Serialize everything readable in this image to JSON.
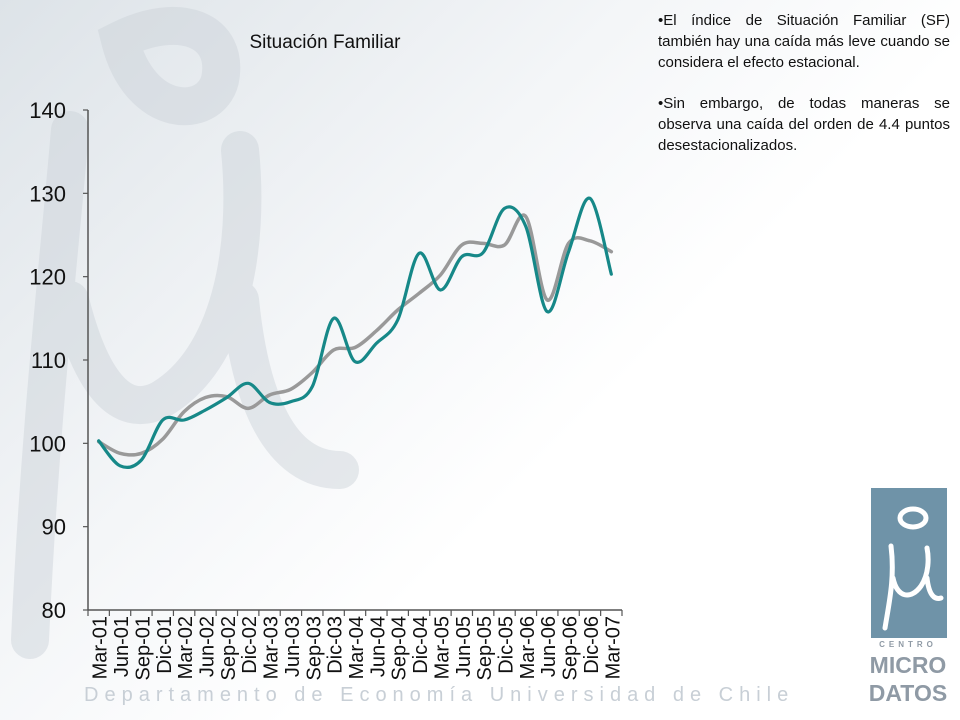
{
  "footer": "Departamento de Economía   Universidad de Chile",
  "notes": [
    "•El índice de Situación Familiar (SF) también hay una caída más leve cuando se considera el efecto estacional.",
    "•Sin embargo, de todas maneras se observa una caída del orden de 4.4 puntos desestacionalizados."
  ],
  "logo": {
    "centro": "CENTRO",
    "micro": "MICRO",
    "datos": "DATOS",
    "color": "#6f93a8"
  },
  "chart_data": {
    "type": "line",
    "title": "Situación Familiar",
    "xlabel": "",
    "ylabel": "",
    "ylim": [
      80,
      140
    ],
    "yticks": [
      80,
      90,
      100,
      110,
      120,
      130,
      140
    ],
    "grid": false,
    "legend": "none",
    "x": [
      "Mar-01",
      "Jun-01",
      "Sep-01",
      "Dic-01",
      "Mar-02",
      "Jun-02",
      "Sep-02",
      "Dic-02",
      "Mar-03",
      "Jun-03",
      "Sep-03",
      "Dic-03",
      "Mar-04",
      "Jun-04",
      "Sep-04",
      "Dic-04",
      "Mar-05",
      "Jun-05",
      "Sep-05",
      "Dic-05",
      "Mar-06",
      "Jun-06",
      "Sep-06",
      "Dic-06",
      "Mar-07"
    ],
    "series": [
      {
        "color": "#999999",
        "values": [
          100.2,
          98.8,
          98.8,
          100.5,
          103.8,
          105.5,
          105.6,
          104.2,
          105.8,
          106.5,
          108.5,
          111.2,
          111.5,
          113.5,
          116.0,
          118.0,
          120.2,
          123.8,
          124.0,
          123.8,
          127.2,
          117.2,
          124.0,
          124.3,
          123.0
        ]
      },
      {
        "color": "#168888",
        "values": [
          100.3,
          97.3,
          98.0,
          102.8,
          102.8,
          104.0,
          105.5,
          107.2,
          104.9,
          105.0,
          106.8,
          115.0,
          109.8,
          112.0,
          114.8,
          122.8,
          118.4,
          122.4,
          122.9,
          128.2,
          126.0,
          115.8,
          123.0,
          129.4,
          120.3
        ]
      }
    ]
  }
}
